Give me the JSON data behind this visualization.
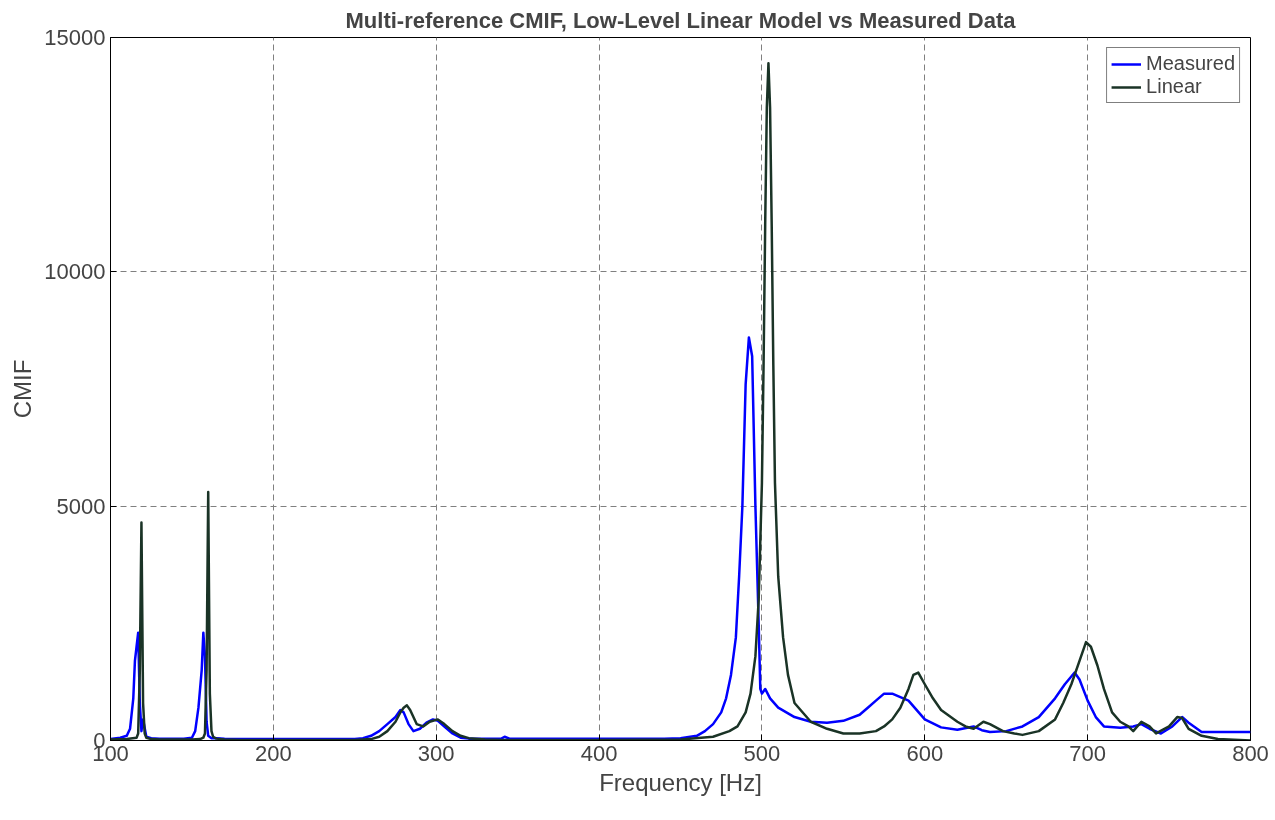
{
  "chart_data": {
    "type": "line",
    "title": "Multi-reference CMIF, Low-Level Linear Model vs Measured Data",
    "xlabel": "Frequency [Hz]",
    "ylabel": "CMIF",
    "xlim": [
      100,
      800
    ],
    "ylim": [
      0,
      15000
    ],
    "xticks": [
      100,
      200,
      300,
      400,
      500,
      600,
      700,
      800
    ],
    "yticks": [
      0,
      5000,
      10000,
      15000
    ],
    "grid": true,
    "legend": "top right",
    "line_style": "solid",
    "marker": "none",
    "series": [
      {
        "name": "Measured",
        "color": "#0000ff",
        "x": [
          100,
          106,
          110,
          112,
          114,
          115,
          116,
          117,
          118,
          119,
          120,
          122,
          125,
          130,
          140,
          145,
          150,
          152,
          154,
          156,
          157,
          158,
          159,
          160,
          162,
          165,
          170,
          180,
          200,
          250,
          255,
          260,
          265,
          270,
          275,
          278,
          280,
          283,
          286,
          290,
          294,
          298,
          301,
          305,
          310,
          315,
          320,
          340,
          342,
          345,
          350,
          400,
          440,
          450,
          460,
          465,
          470,
          475,
          478,
          481,
          484,
          486,
          488,
          490,
          492,
          494,
          496,
          498,
          499,
          500,
          502,
          505,
          510,
          520,
          530,
          540,
          550,
          560,
          565,
          570,
          575,
          580,
          590,
          600,
          610,
          620,
          630,
          635,
          640,
          650,
          660,
          670,
          680,
          686,
          692,
          695,
          700,
          705,
          710,
          720,
          728,
          733,
          738,
          745,
          752,
          758,
          762,
          770,
          780,
          800
        ],
        "values": [
          30,
          60,
          100,
          250,
          900,
          1700,
          2000,
          2300,
          800,
          200,
          450,
          80,
          50,
          40,
          40,
          40,
          60,
          200,
          700,
          1500,
          2300,
          1800,
          400,
          100,
          50,
          50,
          40,
          30,
          30,
          30,
          50,
          100,
          200,
          350,
          500,
          650,
          600,
          350,
          200,
          250,
          380,
          450,
          420,
          300,
          150,
          60,
          40,
          40,
          80,
          40,
          40,
          40,
          40,
          50,
          100,
          200,
          350,
          600,
          900,
          1400,
          2200,
          3500,
          5000,
          7600,
          8600,
          8200,
          5000,
          2500,
          1100,
          1000,
          1100,
          900,
          700,
          500,
          400,
          380,
          420,
          550,
          700,
          850,
          1000,
          1000,
          850,
          450,
          280,
          230,
          300,
          220,
          180,
          200,
          300,
          500,
          900,
          1200,
          1450,
          1300,
          850,
          500,
          300,
          270,
          300,
          350,
          250,
          150,
          300,
          500,
          380,
          180,
          180,
          180
        ]
      },
      {
        "name": "Linear",
        "color": "#1a3326",
        "x": [
          100,
          110,
          116,
          117,
          118,
          119,
          120,
          121,
          122,
          125,
          130,
          150,
          155,
          157,
          158,
          159,
          160,
          161,
          162,
          163,
          165,
          170,
          180,
          250,
          260,
          265,
          270,
          275,
          278,
          280,
          282,
          284,
          288,
          292,
          296,
          301,
          305,
          310,
          315,
          320,
          330,
          340,
          400,
          450,
          470,
          480,
          485,
          490,
          493,
          496,
          498,
          500,
          501,
          502,
          503,
          504,
          505,
          506,
          507,
          508,
          510,
          513,
          516,
          520,
          530,
          540,
          550,
          560,
          570,
          575,
          580,
          585,
          590,
          593,
          596,
          600,
          605,
          610,
          620,
          625,
          630,
          636,
          640,
          648,
          655,
          660,
          670,
          680,
          685,
          690,
          695,
          699,
          702,
          706,
          710,
          715,
          720,
          725,
          728,
          733,
          738,
          742,
          750,
          755,
          758,
          762,
          770,
          780,
          800
        ],
        "values": [
          20,
          30,
          60,
          150,
          1500,
          4650,
          800,
          150,
          60,
          30,
          20,
          20,
          30,
          60,
          150,
          1500,
          5300,
          1000,
          200,
          80,
          40,
          20,
          10,
          10,
          30,
          80,
          200,
          400,
          600,
          700,
          750,
          650,
          350,
          300,
          400,
          450,
          350,
          200,
          100,
          50,
          20,
          10,
          10,
          20,
          80,
          200,
          300,
          600,
          1000,
          1800,
          3000,
          5500,
          8000,
          11000,
          13500,
          14450,
          13500,
          11000,
          8000,
          5500,
          3500,
          2200,
          1400,
          800,
          400,
          250,
          150,
          150,
          200,
          300,
          450,
          700,
          1100,
          1400,
          1450,
          1200,
          900,
          650,
          400,
          300,
          250,
          400,
          350,
          200,
          150,
          120,
          200,
          450,
          800,
          1200,
          1700,
          2100,
          2000,
          1600,
          1100,
          600,
          400,
          300,
          200,
          400,
          300,
          150,
          300,
          500,
          480,
          250,
          100,
          30,
          0
        ]
      }
    ]
  }
}
